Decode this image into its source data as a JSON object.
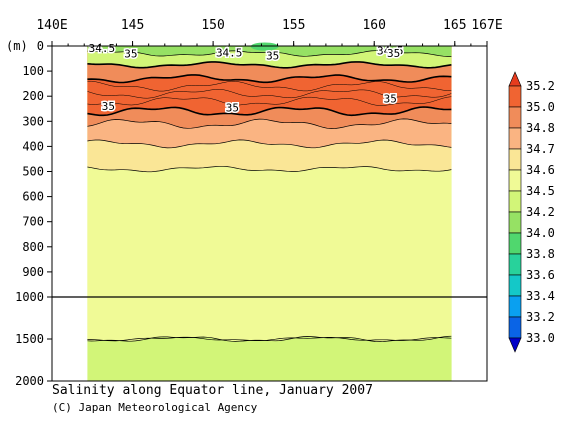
{
  "chart_data": {
    "type": "heatmap",
    "title": "Salinity along Equator line, January 2007",
    "credit": "(C) Japan Meteorological Agency",
    "x_axis": {
      "range": [
        140,
        167
      ],
      "tick_values": [
        140,
        145,
        150,
        155,
        160,
        165,
        167
      ],
      "tick_labels": [
        "140E",
        "145",
        "150",
        "155",
        "160",
        "165",
        "167E"
      ]
    },
    "y_axis": {
      "unit_label": "(m)",
      "range": [
        0,
        2000
      ],
      "break_depth": 1000,
      "tick_values": [
        0,
        100,
        200,
        300,
        400,
        500,
        600,
        700,
        800,
        900,
        1000,
        1500,
        2000
      ],
      "tick_labels": [
        "0",
        "100",
        "200",
        "300",
        "400",
        "500",
        "600",
        "700",
        "800",
        "900",
        "1000",
        "1500",
        "2000"
      ]
    },
    "data_extent_lon": [
      142.2,
      164.8
    ],
    "colorbar": {
      "levels": [
        "33.0",
        "33.2",
        "33.4",
        "33.6",
        "33.8",
        "34.0",
        "34.2",
        "34.5",
        "34.6",
        "34.7",
        "34.8",
        "35.0",
        "35.2"
      ],
      "colors": [
        "#0000c8",
        "#0a64e6",
        "#0aa0f0",
        "#14c8c8",
        "#28d29b",
        "#50d76e",
        "#96e164",
        "#d2f578",
        "#f0fa96",
        "#fae696",
        "#fab482",
        "#f08c5a",
        "#f06432",
        "#e63c1e"
      ]
    },
    "layers": [
      {
        "lower_depth": 30,
        "value": "34.2 – 34.5"
      },
      {
        "lower_depth": 75,
        "value": "34.5 – 34.6"
      },
      {
        "lower_depth": 130,
        "value": "35.0 – 35.2"
      },
      {
        "lower_depth": 260,
        "value": "> 35.2"
      },
      {
        "lower_depth": 310,
        "value": "35.0 – 35.2"
      },
      {
        "lower_depth": 390,
        "value": "34.8 – 35.0"
      },
      {
        "lower_depth": 490,
        "value": "34.7 – 34.8"
      },
      {
        "lower_depth": 1500,
        "value": "34.6 – 34.7"
      },
      {
        "lower_depth": 2000,
        "value": "34.5 – 34.6"
      }
    ],
    "contour_labels": [
      {
        "text": "34.5",
        "lon": 143.1,
        "depth": 8
      },
      {
        "text": "35",
        "lon": 144.9,
        "depth": 30
      },
      {
        "text": "34.5",
        "lon": 151.0,
        "depth": 25
      },
      {
        "text": "35",
        "lon": 153.7,
        "depth": 37
      },
      {
        "text": "34.5",
        "lon": 161.0,
        "depth": 18
      },
      {
        "text": "35",
        "lon": 161.2,
        "depth": 28
      },
      {
        "text": "35",
        "lon": 143.5,
        "depth": 240
      },
      {
        "text": "35",
        "lon": 151.2,
        "depth": 245
      },
      {
        "text": "35",
        "lon": 161.0,
        "depth": 210
      }
    ]
  }
}
